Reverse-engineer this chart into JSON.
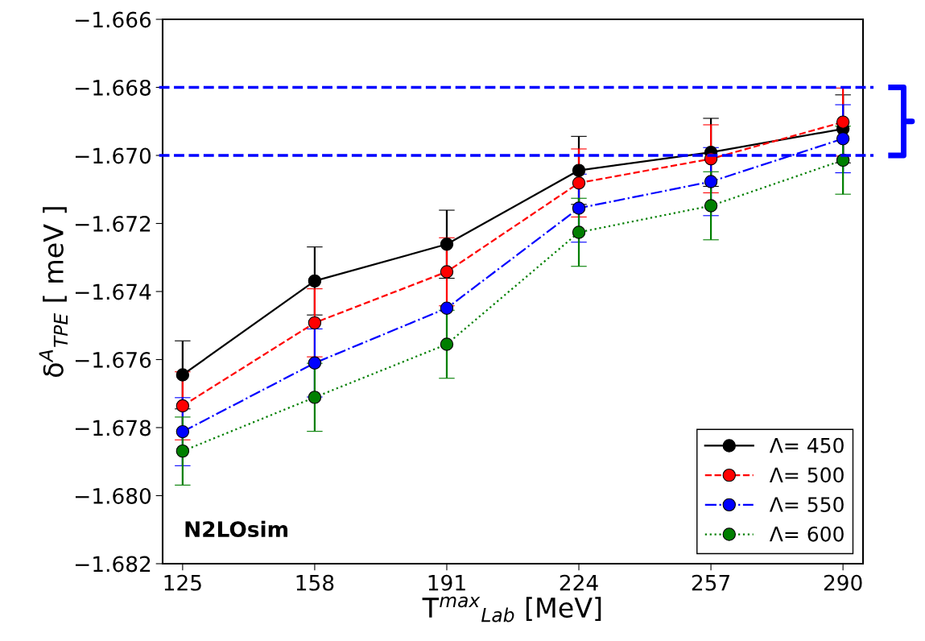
{
  "chart_data": {
    "type": "line",
    "xlabel": "T$^{max}$$_{Lab}$ [MeV]",
    "ylabel": "δ$^{A}$$_{TPE}$ [ meV ]",
    "x": [
      125,
      158,
      191,
      224,
      257,
      290
    ],
    "series": [
      {
        "name": "Λ= 450",
        "color": "#000000",
        "line_style": "solid",
        "values": [
          -1.67645,
          -1.67369,
          -1.67261,
          -1.67044,
          -1.66991,
          -1.66922
        ],
        "errors": [
          0.001,
          0.001,
          0.001,
          0.001,
          0.001,
          0.001
        ]
      },
      {
        "name": "Λ= 500",
        "color": "#ff0000",
        "line_style": "dashed",
        "values": [
          -1.67736,
          -1.67492,
          -1.67342,
          -1.67081,
          -1.6701,
          -1.66902
        ],
        "errors": [
          0.001,
          0.001,
          0.001,
          0.001,
          0.001,
          0.001
        ]
      },
      {
        "name": "Λ= 550",
        "color": "#0000ff",
        "line_style": "dashdot",
        "values": [
          -1.67812,
          -1.6761,
          -1.67449,
          -1.67155,
          -1.67077,
          -1.66951
        ],
        "errors": [
          0.001,
          0.001,
          null,
          0.001,
          0.001,
          0.001
        ]
      },
      {
        "name": "Λ= 600",
        "color": "#007f00",
        "line_style": "dotted",
        "values": [
          -1.67869,
          -1.67711,
          -1.67555,
          -1.67226,
          -1.67148,
          -1.67014
        ],
        "errors": [
          0.001,
          0.001,
          0.001,
          0.001,
          0.001,
          0.001
        ]
      }
    ],
    "marker": "circle",
    "xlim": [
      120,
      295
    ],
    "xticks": [
      125,
      158,
      191,
      224,
      257,
      290
    ],
    "ylim": [
      -1.682,
      -1.666
    ],
    "yticks": [
      {
        "value": -1.682,
        "label": "−1.682"
      },
      {
        "value": -1.68,
        "label": "−1.680"
      },
      {
        "value": -1.678,
        "label": "−1.678"
      },
      {
        "value": -1.676,
        "label": "−1.676"
      },
      {
        "value": -1.674,
        "label": "−1.674"
      },
      {
        "value": -1.672,
        "label": "−1.672"
      },
      {
        "value": -1.67,
        "label": "−1.670"
      },
      {
        "value": -1.668,
        "label": "−1.668"
      },
      {
        "value": -1.666,
        "label": "−1.666"
      }
    ],
    "ref_lines": [
      {
        "axis": "y",
        "value": -1.668,
        "color": "#0000ff",
        "line_style": "dashed"
      },
      {
        "axis": "y",
        "value": -1.67,
        "color": "#0000ff",
        "line_style": "dashed"
      }
    ],
    "annotations": [
      "N2LOsim"
    ],
    "legend": "bottom right",
    "grid": false
  }
}
